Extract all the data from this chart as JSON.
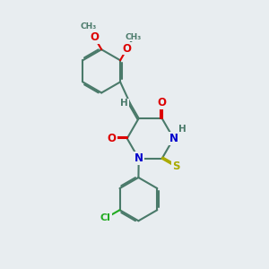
{
  "background_color": "#e8edf0",
  "bond_color": "#4a7a6a",
  "bond_width": 1.5,
  "dbo": 0.055,
  "atom_colors": {
    "O": "#dd0000",
    "N": "#0000cc",
    "S": "#aaaa00",
    "Cl": "#22aa22",
    "C": "#4a7a6a",
    "H": "#4a7a6a"
  },
  "font_size": 8.5,
  "fig_size": [
    3.0,
    3.0
  ],
  "xlim": [
    0,
    10
  ],
  "ylim": [
    0,
    10
  ]
}
